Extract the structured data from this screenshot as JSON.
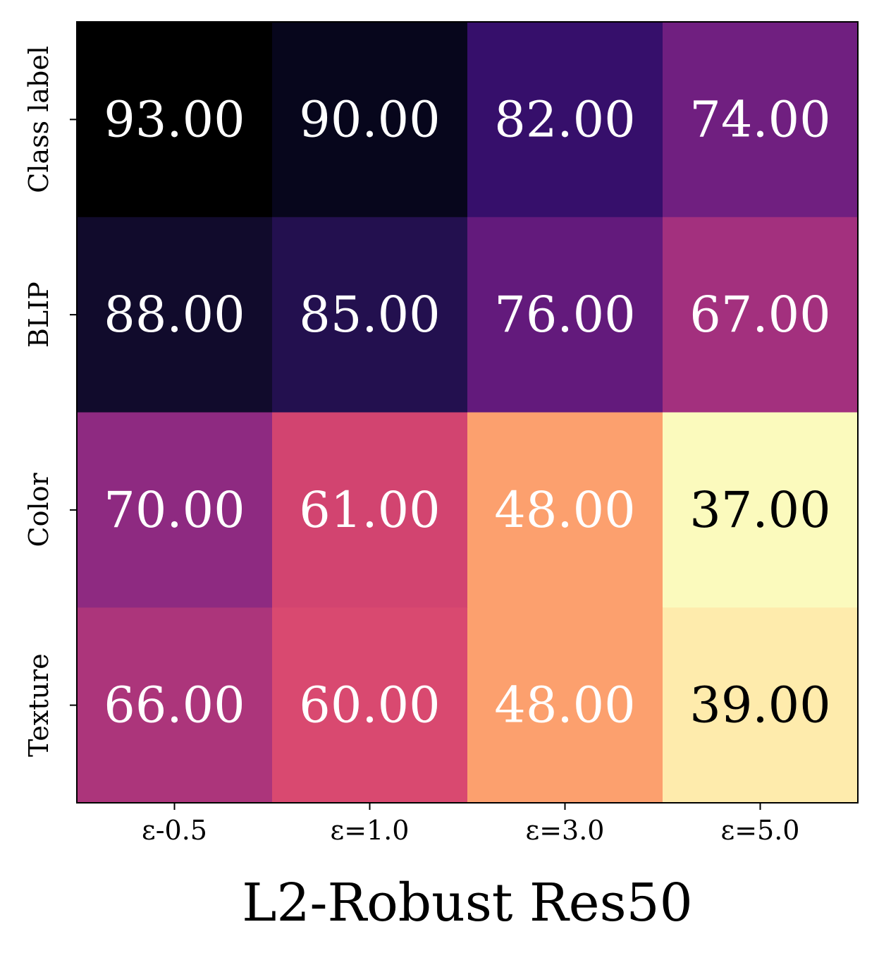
{
  "chart_data": {
    "type": "heatmap",
    "title": "",
    "xlabel": "L2-Robust Res50",
    "ylabel": "",
    "grid": false,
    "colormap": "magma_r",
    "x_categories": [
      "ε-0.5",
      "ε=1.0",
      "ε=3.0",
      "ε=5.0"
    ],
    "y_categories": [
      "Class label",
      "BLIP",
      "Color",
      "Texture"
    ],
    "values": [
      [
        93.0,
        90.0,
        82.0,
        74.0
      ],
      [
        88.0,
        85.0,
        76.0,
        67.0
      ],
      [
        70.0,
        61.0,
        48.0,
        37.0
      ],
      [
        66.0,
        60.0,
        48.0,
        39.0
      ]
    ],
    "value_labels": [
      [
        "93.00",
        "90.00",
        "82.00",
        "74.00"
      ],
      [
        "88.00",
        "85.00",
        "76.00",
        "67.00"
      ],
      [
        "70.00",
        "61.00",
        "48.00",
        "37.00"
      ],
      [
        "66.00",
        "60.00",
        "48.00",
        "39.00"
      ]
    ],
    "cell_colors": [
      [
        "#000000",
        "#07061c",
        "#360f6b",
        "#701f80"
      ],
      [
        "#110b2c",
        "#23104f",
        "#631a7c",
        "#a3307e"
      ],
      [
        "#8e2a81",
        "#d24470",
        "#fca06e",
        "#fbfabd"
      ],
      [
        "#ac357b",
        "#d94970",
        "#fca06e",
        "#feebac"
      ]
    ],
    "label_colors": [
      [
        "#ffffff",
        "#ffffff",
        "#ffffff",
        "#ffffff"
      ],
      [
        "#ffffff",
        "#ffffff",
        "#ffffff",
        "#ffffff"
      ],
      [
        "#ffffff",
        "#ffffff",
        "#ffffff",
        "#000000"
      ],
      [
        "#ffffff",
        "#ffffff",
        "#ffffff",
        "#000000"
      ]
    ]
  }
}
